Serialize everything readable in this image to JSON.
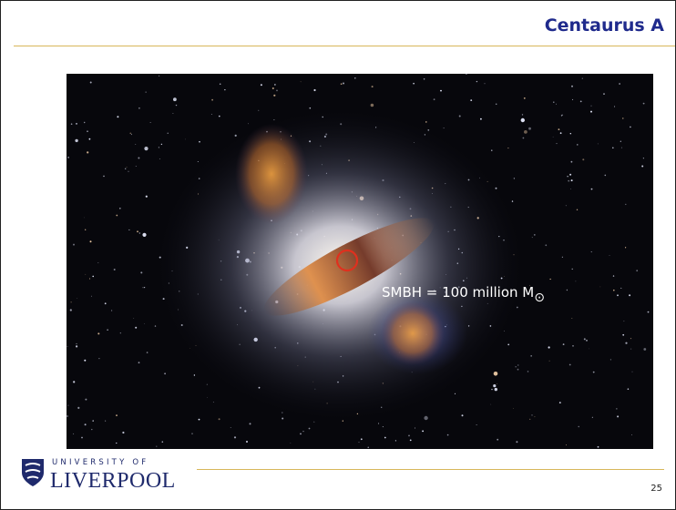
{
  "header": {
    "title": "Centaurus A"
  },
  "annotation": {
    "text": "SMBH = 100 million M",
    "subscript": "⊙"
  },
  "footer": {
    "logo_top": "UNIVERSITY OF",
    "logo_bottom": "LIVERPOOL",
    "page_number": "25"
  }
}
